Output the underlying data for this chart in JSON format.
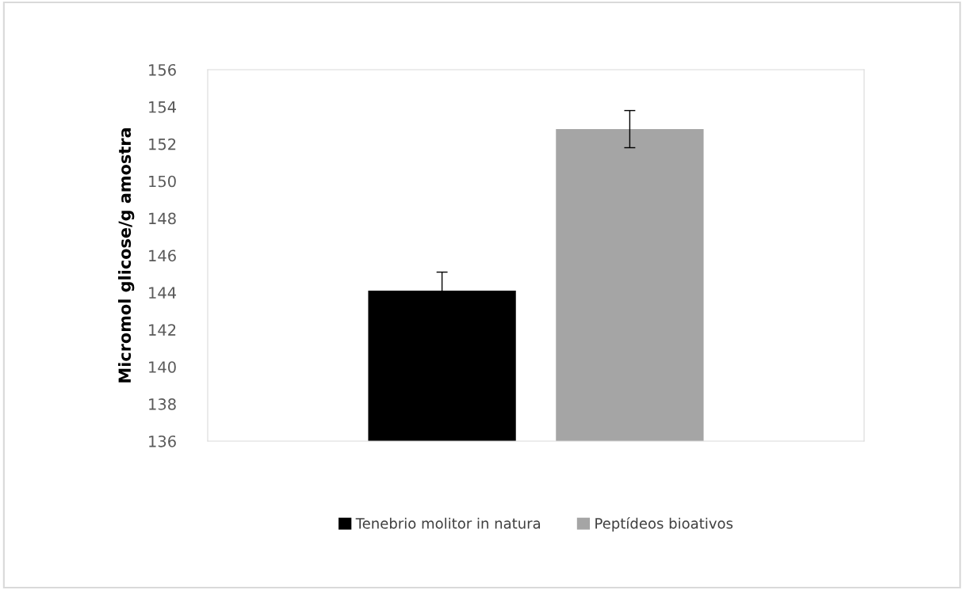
{
  "chart_data": {
    "type": "bar",
    "ylabel": "Micromol glicose/g amostra",
    "categories": [
      null
    ],
    "series": [
      {
        "name": "Tenebrio molitor in natura",
        "color": "#000000",
        "values": [
          144.1
        ],
        "errors": [
          1.0
        ]
      },
      {
        "name": "Peptídeos bioativos",
        "color": "#a5a5a5",
        "values": [
          152.8
        ],
        "errors": [
          1.0
        ]
      }
    ],
    "ylim": [
      136,
      156
    ],
    "yticks": [
      136,
      138,
      140,
      142,
      144,
      146,
      148,
      150,
      152,
      154,
      156
    ],
    "grid": false,
    "legend": "bottom"
  }
}
